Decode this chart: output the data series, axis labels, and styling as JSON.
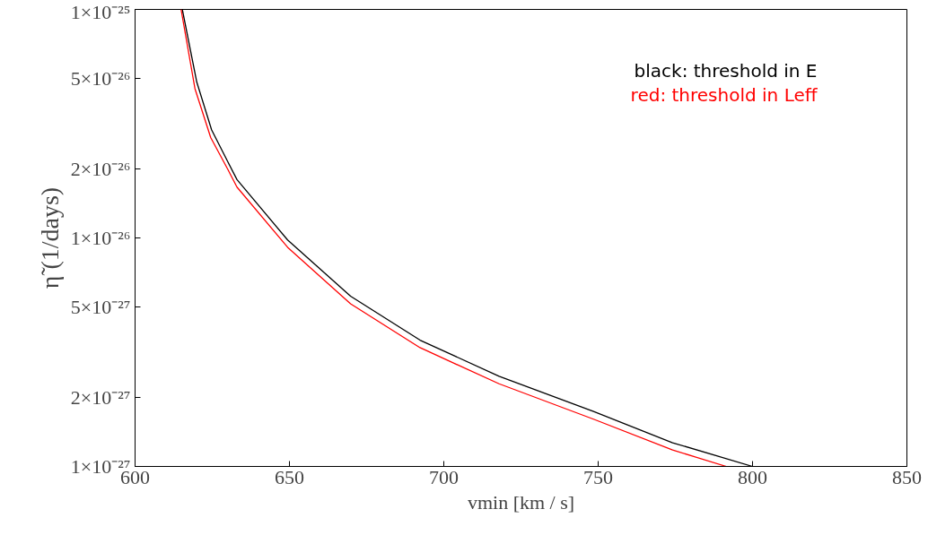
{
  "chart_data": {
    "type": "line",
    "xlabel": "vmin [km / s]",
    "ylabel": "η̃ (1/days)",
    "log": "y",
    "legend": "top right",
    "grid": false,
    "xlim": [
      600,
      850
    ],
    "ylim": [
      1e-27,
      1e-25
    ],
    "xticks": [
      600,
      650,
      700,
      750,
      800,
      850
    ],
    "yticks": [
      {
        "value": 1e-25,
        "label": "1×10⁻²⁵"
      },
      {
        "value": 5e-26,
        "label": "5×10⁻²⁶"
      },
      {
        "value": 2e-26,
        "label": "2×10⁻²⁶"
      },
      {
        "value": 1e-26,
        "label": "1×10⁻²⁶"
      },
      {
        "value": 5e-27,
        "label": "5×10⁻²⁷"
      },
      {
        "value": 2e-27,
        "label": "2×10⁻²⁷"
      },
      {
        "value": 1e-27,
        "label": "1×10⁻²⁷"
      }
    ],
    "series": [
      {
        "name": "black: threshold in E",
        "color": "#000000",
        "x": [
          615.3,
          620,
          624.8,
          630,
          633,
          649.4,
          669.8,
          692.3,
          717.9,
          748.5,
          774.1,
          800
        ],
        "values": [
          1e-25,
          4.8e-26,
          2.97e-26,
          2.16e-26,
          1.8e-26,
          9.8e-27,
          5.56e-27,
          3.57e-27,
          2.48e-27,
          1.74e-27,
          1.27e-27,
          1e-27
        ]
      },
      {
        "name": "red: threshold in Leff",
        "color": "#ff0000",
        "x": [
          614.9,
          619.4,
          624.5,
          630,
          633,
          649.4,
          669.8,
          692.3,
          717.9,
          748.5,
          774.1,
          791.5
        ],
        "values": [
          1e-25,
          4.5e-26,
          2.75e-26,
          2e-26,
          1.67e-26,
          9.1e-27,
          5.15e-27,
          3.31e-27,
          2.3e-27,
          1.61e-27,
          1.18e-27,
          1e-27
        ]
      }
    ]
  }
}
